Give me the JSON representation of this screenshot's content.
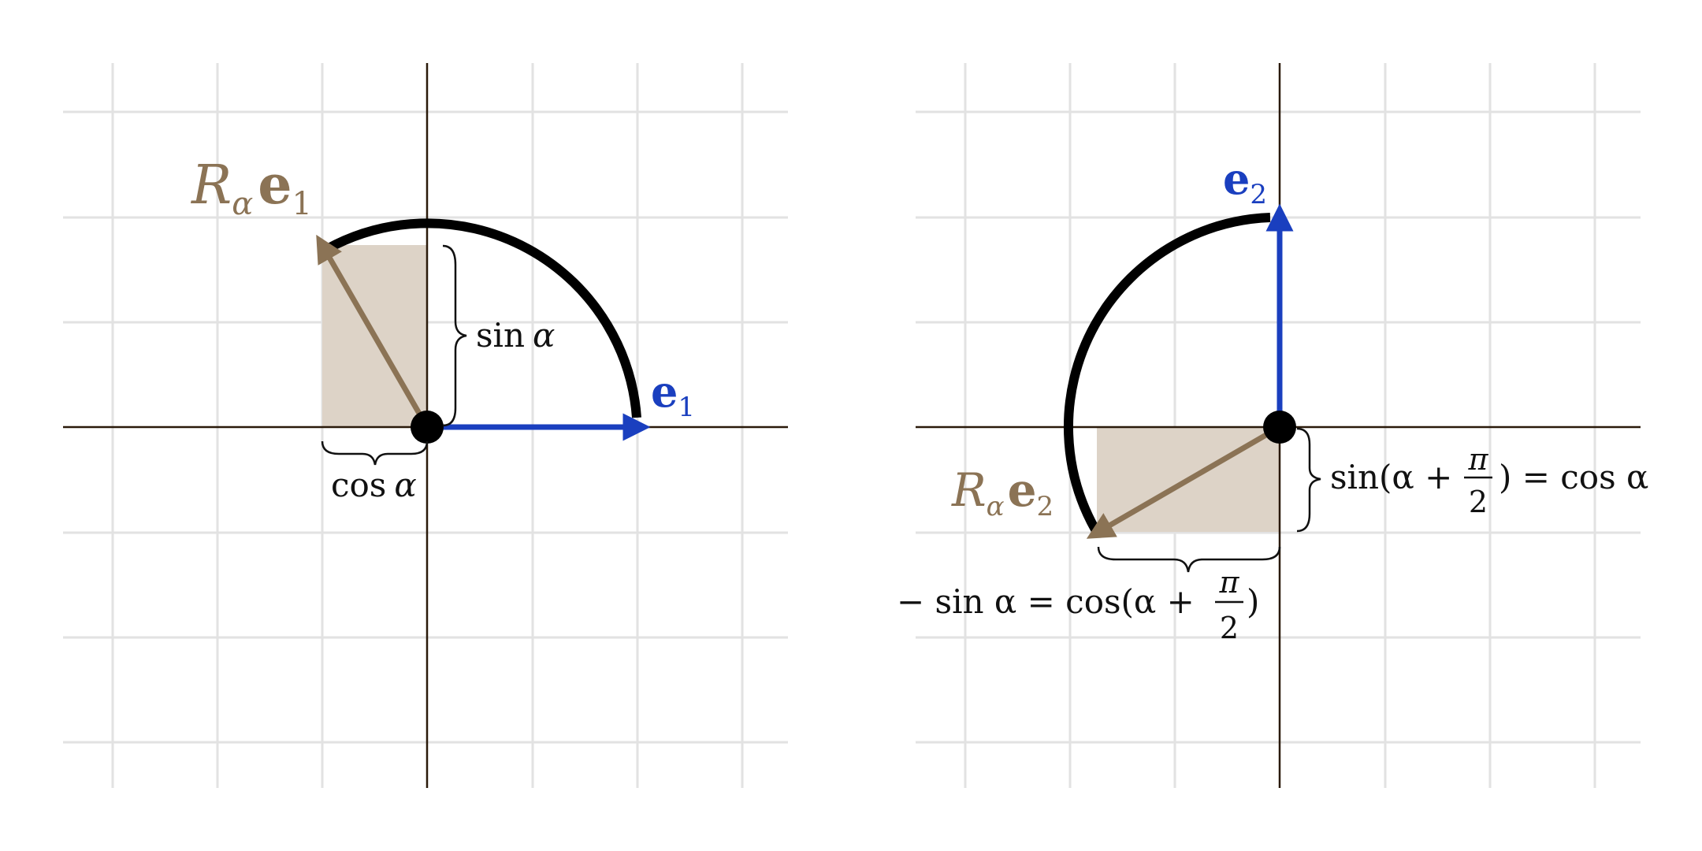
{
  "colors": {
    "grid": "#e2e2e2",
    "axis": "#2a1a0a",
    "arc": "#000000",
    "basis": "#1a3fbf",
    "rotated": "#8b7355",
    "shade": "#ddd3c7",
    "text": "#111111"
  },
  "left_panel": {
    "rotated_label": {
      "R": "R",
      "sub": "α",
      "vec": "e",
      "idx": "1"
    },
    "basis_label": {
      "vec": "e",
      "idx": "1"
    },
    "sin_label": {
      "fn": "sin",
      "arg": "α"
    },
    "cos_label": {
      "fn": "cos",
      "arg": "α"
    }
  },
  "right_panel": {
    "rotated_label": {
      "R": "R",
      "sub": "α",
      "vec": "e",
      "idx": "2"
    },
    "basis_label": {
      "vec": "e",
      "idx": "2"
    },
    "vertical_label": {
      "left": "sin(α +",
      "num": "π",
      "den": "2",
      "right": ") = cos α"
    },
    "horizontal_label": {
      "left": "− sin α = cos(α +",
      "num": "π",
      "den": "2",
      "right": ")"
    }
  }
}
